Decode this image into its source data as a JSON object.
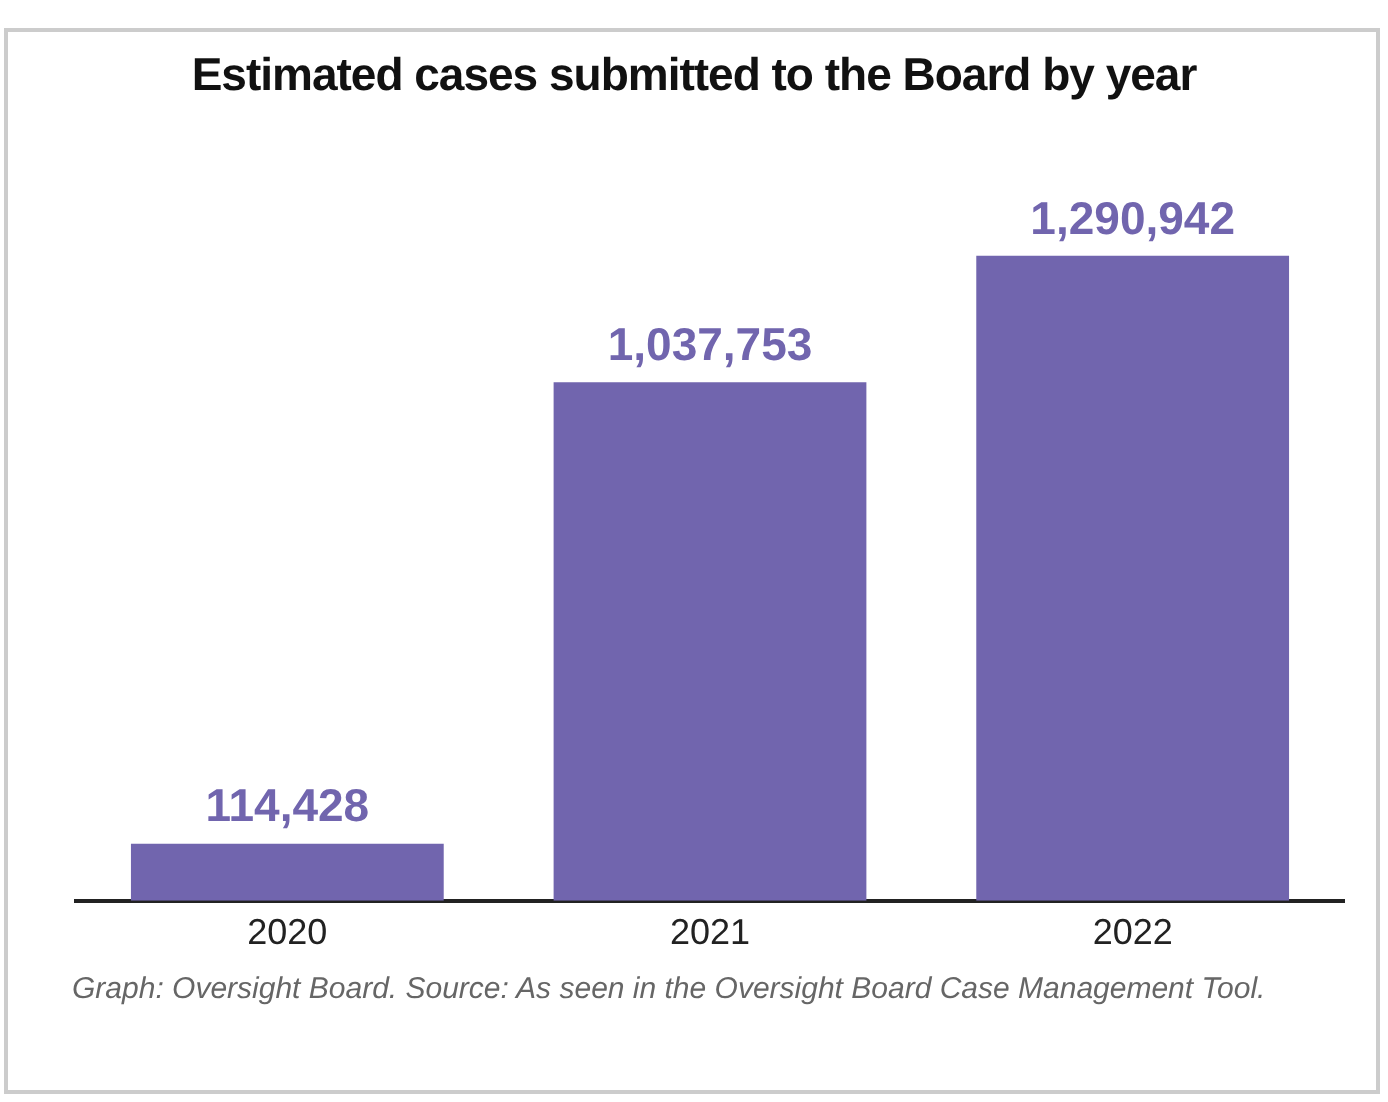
{
  "chart_data": {
    "type": "bar",
    "title": "Estimated cases submitted to the Board by year",
    "categories": [
      "2020",
      "2021",
      "2022"
    ],
    "values": [
      114428,
      1037753,
      1290942
    ],
    "color": "#7165ae",
    "value_labels": [
      "114,428",
      "1,037,753",
      "1,290,942"
    ],
    "grid": false,
    "legend": false,
    "annotations": [
      "Graph: Oversight Board. Source: As seen in the Oversight Board Case Management Tool."
    ]
  }
}
